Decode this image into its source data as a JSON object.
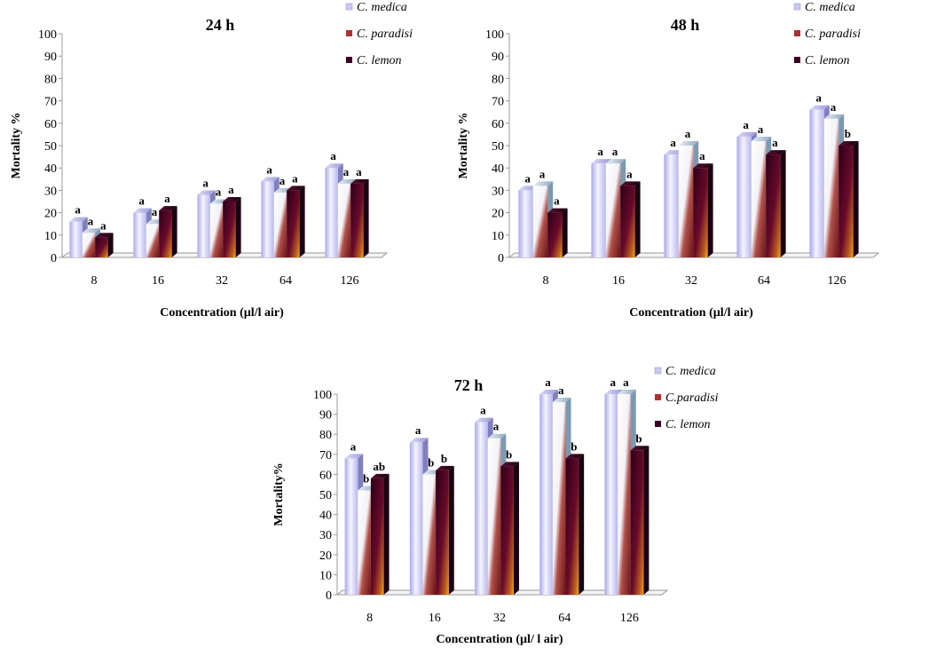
{
  "chart_data": [
    {
      "type": "bar",
      "title": "24 h",
      "categories": [
        "8",
        "16",
        "32",
        "64",
        "126"
      ],
      "xlabel": "Concentration (µl/l air)",
      "ylabel": "Mortality %",
      "ylim": [
        0,
        100
      ],
      "yticks": [
        "0",
        "10",
        "20",
        "30",
        "40",
        "50",
        "60",
        "70",
        "80",
        "90",
        "100"
      ],
      "legend_position": "top-right",
      "series": [
        {
          "name": "C. medica",
          "values": [
            16,
            20,
            28,
            34,
            40
          ],
          "labels": [
            "a",
            "a",
            "a",
            "a",
            "a"
          ]
        },
        {
          "name": "C. paradisi",
          "values": [
            11,
            15,
            24,
            29,
            33
          ],
          "labels": [
            "a",
            "a",
            "a",
            "a",
            "a"
          ]
        },
        {
          "name": "C. lemon",
          "values": [
            9,
            21,
            25,
            30,
            33
          ],
          "labels": [
            "a",
            "a",
            "a",
            "a",
            "a"
          ]
        }
      ]
    },
    {
      "type": "bar",
      "title": "48 h",
      "categories": [
        "8",
        "16",
        "32",
        "64",
        "126"
      ],
      "xlabel": "Concentration (µl/l air)",
      "ylabel": "Mortality %",
      "ylim": [
        0,
        100
      ],
      "yticks": [
        "0",
        "10",
        "20",
        "30",
        "40",
        "50",
        "60",
        "70",
        "80",
        "90",
        "100"
      ],
      "legend_position": "top-right",
      "series": [
        {
          "name": "C. medica",
          "values": [
            30,
            42,
            46,
            54,
            66
          ],
          "labels": [
            "a",
            "a",
            "a",
            "a",
            "a"
          ]
        },
        {
          "name": "C. paradisi",
          "values": [
            32,
            42,
            50,
            52,
            62
          ],
          "labels": [
            "a",
            "a",
            "a",
            "a",
            "a"
          ]
        },
        {
          "name": "C. lemon",
          "values": [
            20,
            32,
            40,
            46,
            50
          ],
          "labels": [
            "a",
            "a",
            "a",
            "a",
            "b"
          ]
        }
      ]
    },
    {
      "type": "bar",
      "title": "72 h",
      "categories": [
        "8",
        "16",
        "32",
        "64",
        "126"
      ],
      "xlabel": "Concentration (µl/ l air)",
      "ylabel": "Mortality%",
      "ylim": [
        0,
        100
      ],
      "yticks": [
        "0",
        "10",
        "20",
        "30",
        "40",
        "50",
        "60",
        "70",
        "80",
        "90",
        "100"
      ],
      "legend_position": "top-right",
      "series": [
        {
          "name": "C. medica",
          "values": [
            68,
            76,
            86,
            100,
            100
          ],
          "labels": [
            "a",
            "a",
            "a",
            "a",
            "a"
          ]
        },
        {
          "name": "C.paradisi",
          "values": [
            52,
            60,
            78,
            96,
            100
          ],
          "labels": [
            "b",
            "b",
            "a",
            "a",
            "a"
          ]
        },
        {
          "name": "C. lemon",
          "values": [
            58,
            62,
            64,
            68,
            72
          ],
          "labels": [
            "ab",
            "b",
            "b",
            "b",
            "b"
          ]
        }
      ]
    }
  ]
}
